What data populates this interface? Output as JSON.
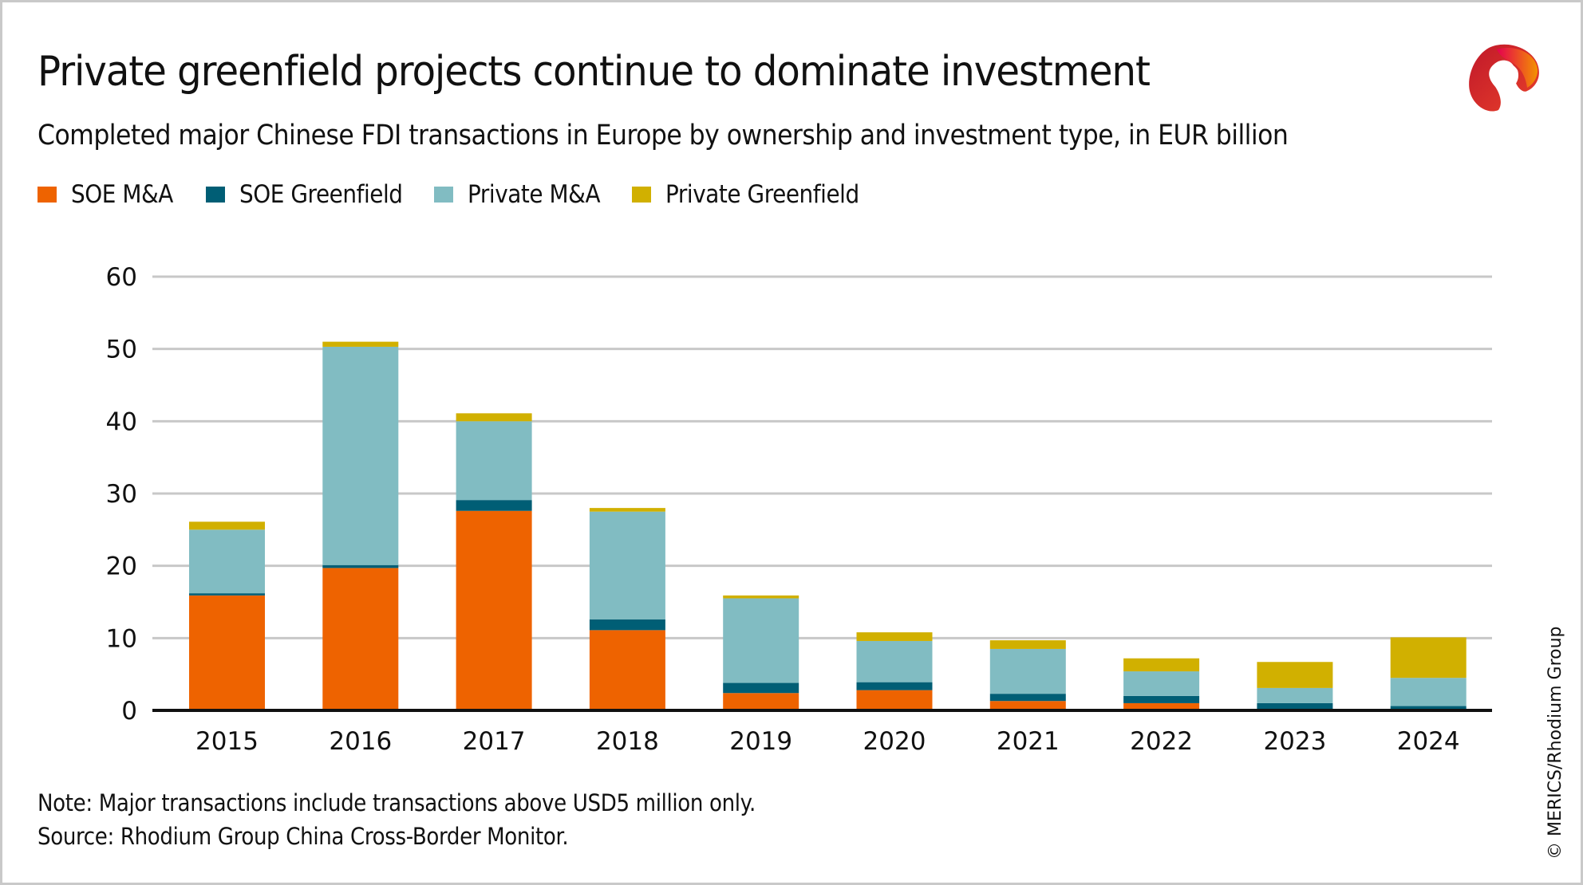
{
  "header": {
    "title": "Private greenfield projects continue to dominate investment",
    "subtitle": "Completed major Chinese FDI transactions in Europe by ownership and investment type, in EUR billion"
  },
  "legend": {
    "items": [
      {
        "label": "SOE M&A",
        "color": "#ee6300"
      },
      {
        "label": "SOE Greenfield",
        "color": "#005e75"
      },
      {
        "label": "Private M&A",
        "color": "#81bcc2"
      },
      {
        "label": "Private Greenfield",
        "color": "#d1b000"
      }
    ]
  },
  "logo": {
    "icon": "merics-ribbon-logo-icon"
  },
  "footer": {
    "note": "Note: Major transactions include transactions above USD5 million only.",
    "source": "Source: Rhodium Group China Cross-Border Monitor.",
    "copyright": "© MERICS/Rhodium Group"
  },
  "chart_data": {
    "type": "bar",
    "stacked": true,
    "title": "Private greenfield projects continue to dominate investment",
    "subtitle": "Completed major Chinese FDI transactions in Europe by ownership and investment type, in EUR billion",
    "xlabel": "",
    "ylabel": "",
    "ylim": [
      0,
      60
    ],
    "yticks": [
      0,
      10,
      20,
      30,
      40,
      50,
      60
    ],
    "grid": true,
    "legend_position": "top-left",
    "categories": [
      "2015",
      "2016",
      "2017",
      "2018",
      "2019",
      "2020",
      "2021",
      "2022",
      "2023",
      "2024"
    ],
    "series": [
      {
        "name": "SOE M&A",
        "color": "#ee6300",
        "values": [
          15.9,
          19.7,
          27.6,
          11.1,
          2.4,
          2.8,
          1.3,
          1.0,
          0.1,
          0.1
        ]
      },
      {
        "name": "SOE Greenfield",
        "color": "#005e75",
        "values": [
          0.3,
          0.4,
          1.5,
          1.5,
          1.4,
          1.1,
          1.0,
          1.0,
          0.9,
          0.5
        ]
      },
      {
        "name": "Private M&A",
        "color": "#81bcc2",
        "values": [
          8.8,
          30.2,
          10.9,
          14.9,
          11.7,
          5.7,
          6.2,
          3.4,
          2.1,
          3.9
        ]
      },
      {
        "name": "Private Greenfield",
        "color": "#d1b000",
        "values": [
          1.1,
          0.7,
          1.1,
          0.5,
          0.4,
          1.2,
          1.2,
          1.8,
          3.6,
          5.6
        ]
      }
    ]
  }
}
